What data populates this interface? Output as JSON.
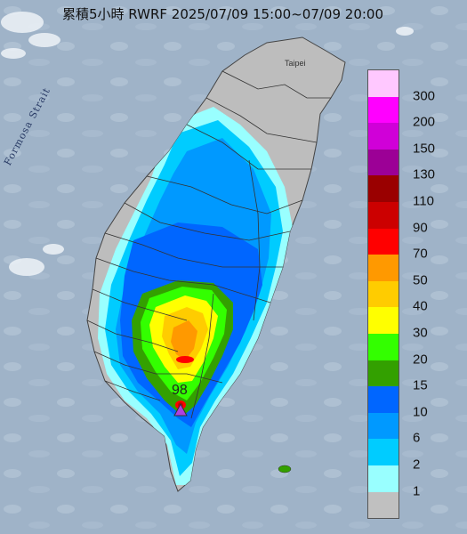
{
  "title": "累積5小時 RWRF 2025/07/09 15:00~07/09 20:00",
  "sea_label": "Formosa Strait",
  "city_label": "Taipei",
  "max_value": "98",
  "marker_icon": "triangle-marker-icon",
  "colors": {
    "sea": "#9fb3c8",
    "land_no_rain": "#bdbdbd",
    "marker": "#b040e0"
  },
  "legend": {
    "items": [
      {
        "label": "300",
        "color": "#ffc8ff"
      },
      {
        "label": "200",
        "color": "#ff00ff"
      },
      {
        "label": "150",
        "color": "#d000d8"
      },
      {
        "label": "130",
        "color": "#9c0096"
      },
      {
        "label": "110",
        "color": "#9a0000"
      },
      {
        "label": "90",
        "color": "#cc0000"
      },
      {
        "label": "70",
        "color": "#ff0000"
      },
      {
        "label": "50",
        "color": "#ff9900"
      },
      {
        "label": "40",
        "color": "#ffcc00"
      },
      {
        "label": "30",
        "color": "#ffff00"
      },
      {
        "label": "20",
        "color": "#33ff00"
      },
      {
        "label": "15",
        "color": "#33a000"
      },
      {
        "label": "10",
        "color": "#0066ff"
      },
      {
        "label": "6",
        "color": "#0099ff"
      },
      {
        "label": "2",
        "color": "#00ccff"
      },
      {
        "label": "1",
        "color": "#99ffff"
      },
      {
        "label": "",
        "color": "#c0c0c0"
      }
    ]
  }
}
